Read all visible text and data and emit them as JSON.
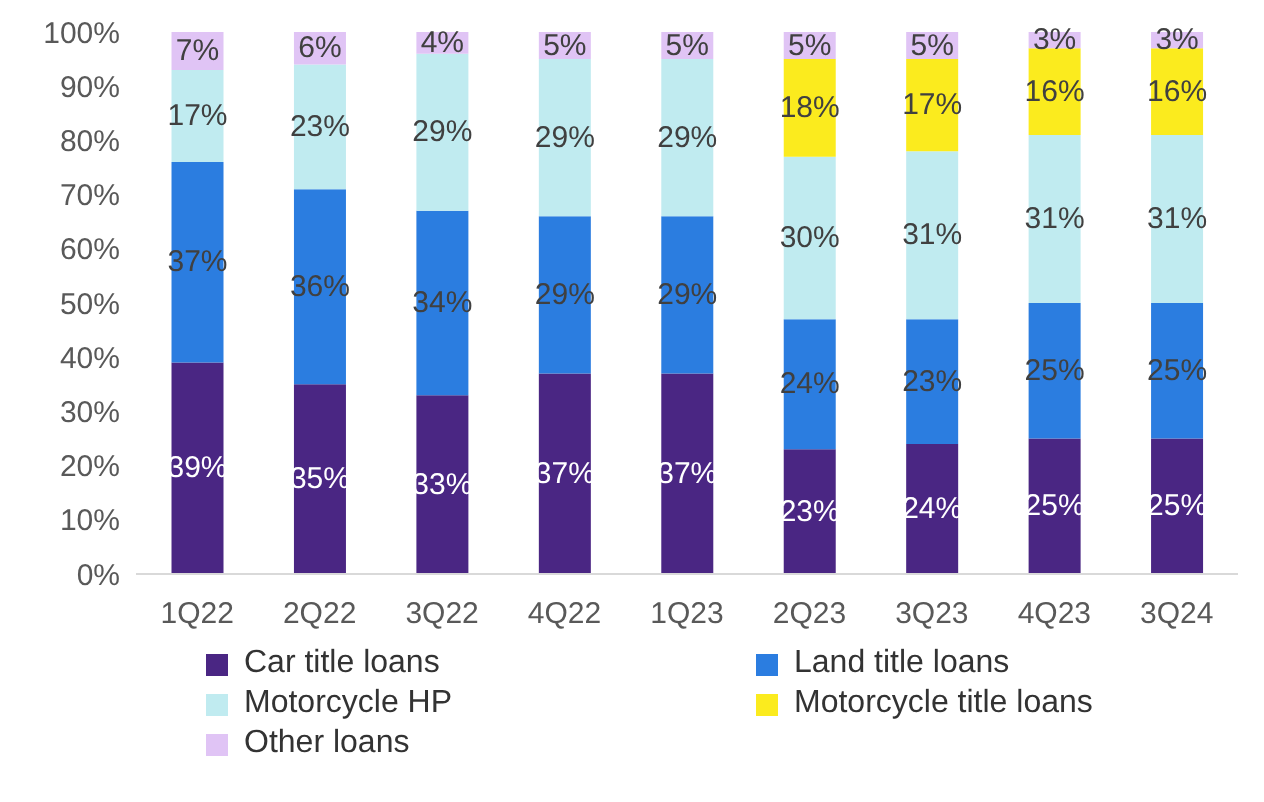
{
  "chart_data": {
    "type": "bar",
    "stacked": true,
    "categories": [
      "1Q22",
      "2Q22",
      "3Q22",
      "4Q22",
      "1Q23",
      "2Q23",
      "3Q23",
      "4Q23",
      "3Q24"
    ],
    "series": [
      {
        "name": "Car title loans",
        "color": "#4a2683",
        "values": [
          39,
          35,
          33,
          37,
          37,
          23,
          24,
          25,
          25
        ],
        "value_labels": [
          "39%",
          "35%",
          "33%",
          "37%",
          "37%",
          "23%",
          "24%",
          "25%",
          "25%"
        ]
      },
      {
        "name": "Land title loans",
        "color": "#2b7de0",
        "values": [
          37,
          36,
          34,
          29,
          29,
          24,
          23,
          25,
          25
        ],
        "value_labels": [
          "37%",
          "36%",
          "34%",
          "29%",
          "29%",
          "24%",
          "23%",
          "25%",
          "25%"
        ]
      },
      {
        "name": "Motorcycle HP",
        "color": "#c0ebf0",
        "values": [
          17,
          23,
          29,
          29,
          29,
          30,
          31,
          31,
          31
        ],
        "value_labels": [
          "17%",
          "23%",
          "29%",
          "29%",
          "29%",
          "30%",
          "31%",
          "31%",
          "31%"
        ]
      },
      {
        "name": "Motorcycle title loans",
        "color": "#fbeb1e",
        "values": [
          null,
          null,
          null,
          null,
          null,
          18,
          17,
          16,
          16
        ],
        "value_labels": [
          null,
          null,
          null,
          null,
          null,
          "18%",
          "17%",
          "16%",
          "16%"
        ]
      },
      {
        "name": "Other loans",
        "color": "#e0c4f5",
        "values": [
          7,
          6,
          4,
          5,
          5,
          5,
          5,
          3,
          3
        ],
        "value_labels": [
          "7%",
          "6%",
          "4%",
          "5%",
          "5%",
          "5%",
          "5%",
          "3%",
          "3%"
        ]
      }
    ],
    "ylim": [
      0,
      100
    ],
    "yticks": [
      {
        "value": 0,
        "label": "0%"
      },
      {
        "value": 10,
        "label": "10%"
      },
      {
        "value": 20,
        "label": "20%"
      },
      {
        "value": 30,
        "label": "30%"
      },
      {
        "value": 40,
        "label": "40%"
      },
      {
        "value": 50,
        "label": "50%"
      },
      {
        "value": 60,
        "label": "60%"
      },
      {
        "value": 70,
        "label": "70%"
      },
      {
        "value": 80,
        "label": "80%"
      },
      {
        "value": 90,
        "label": "90%"
      },
      {
        "value": 100,
        "label": "100%"
      }
    ],
    "grid": false,
    "legend": "bottom"
  }
}
